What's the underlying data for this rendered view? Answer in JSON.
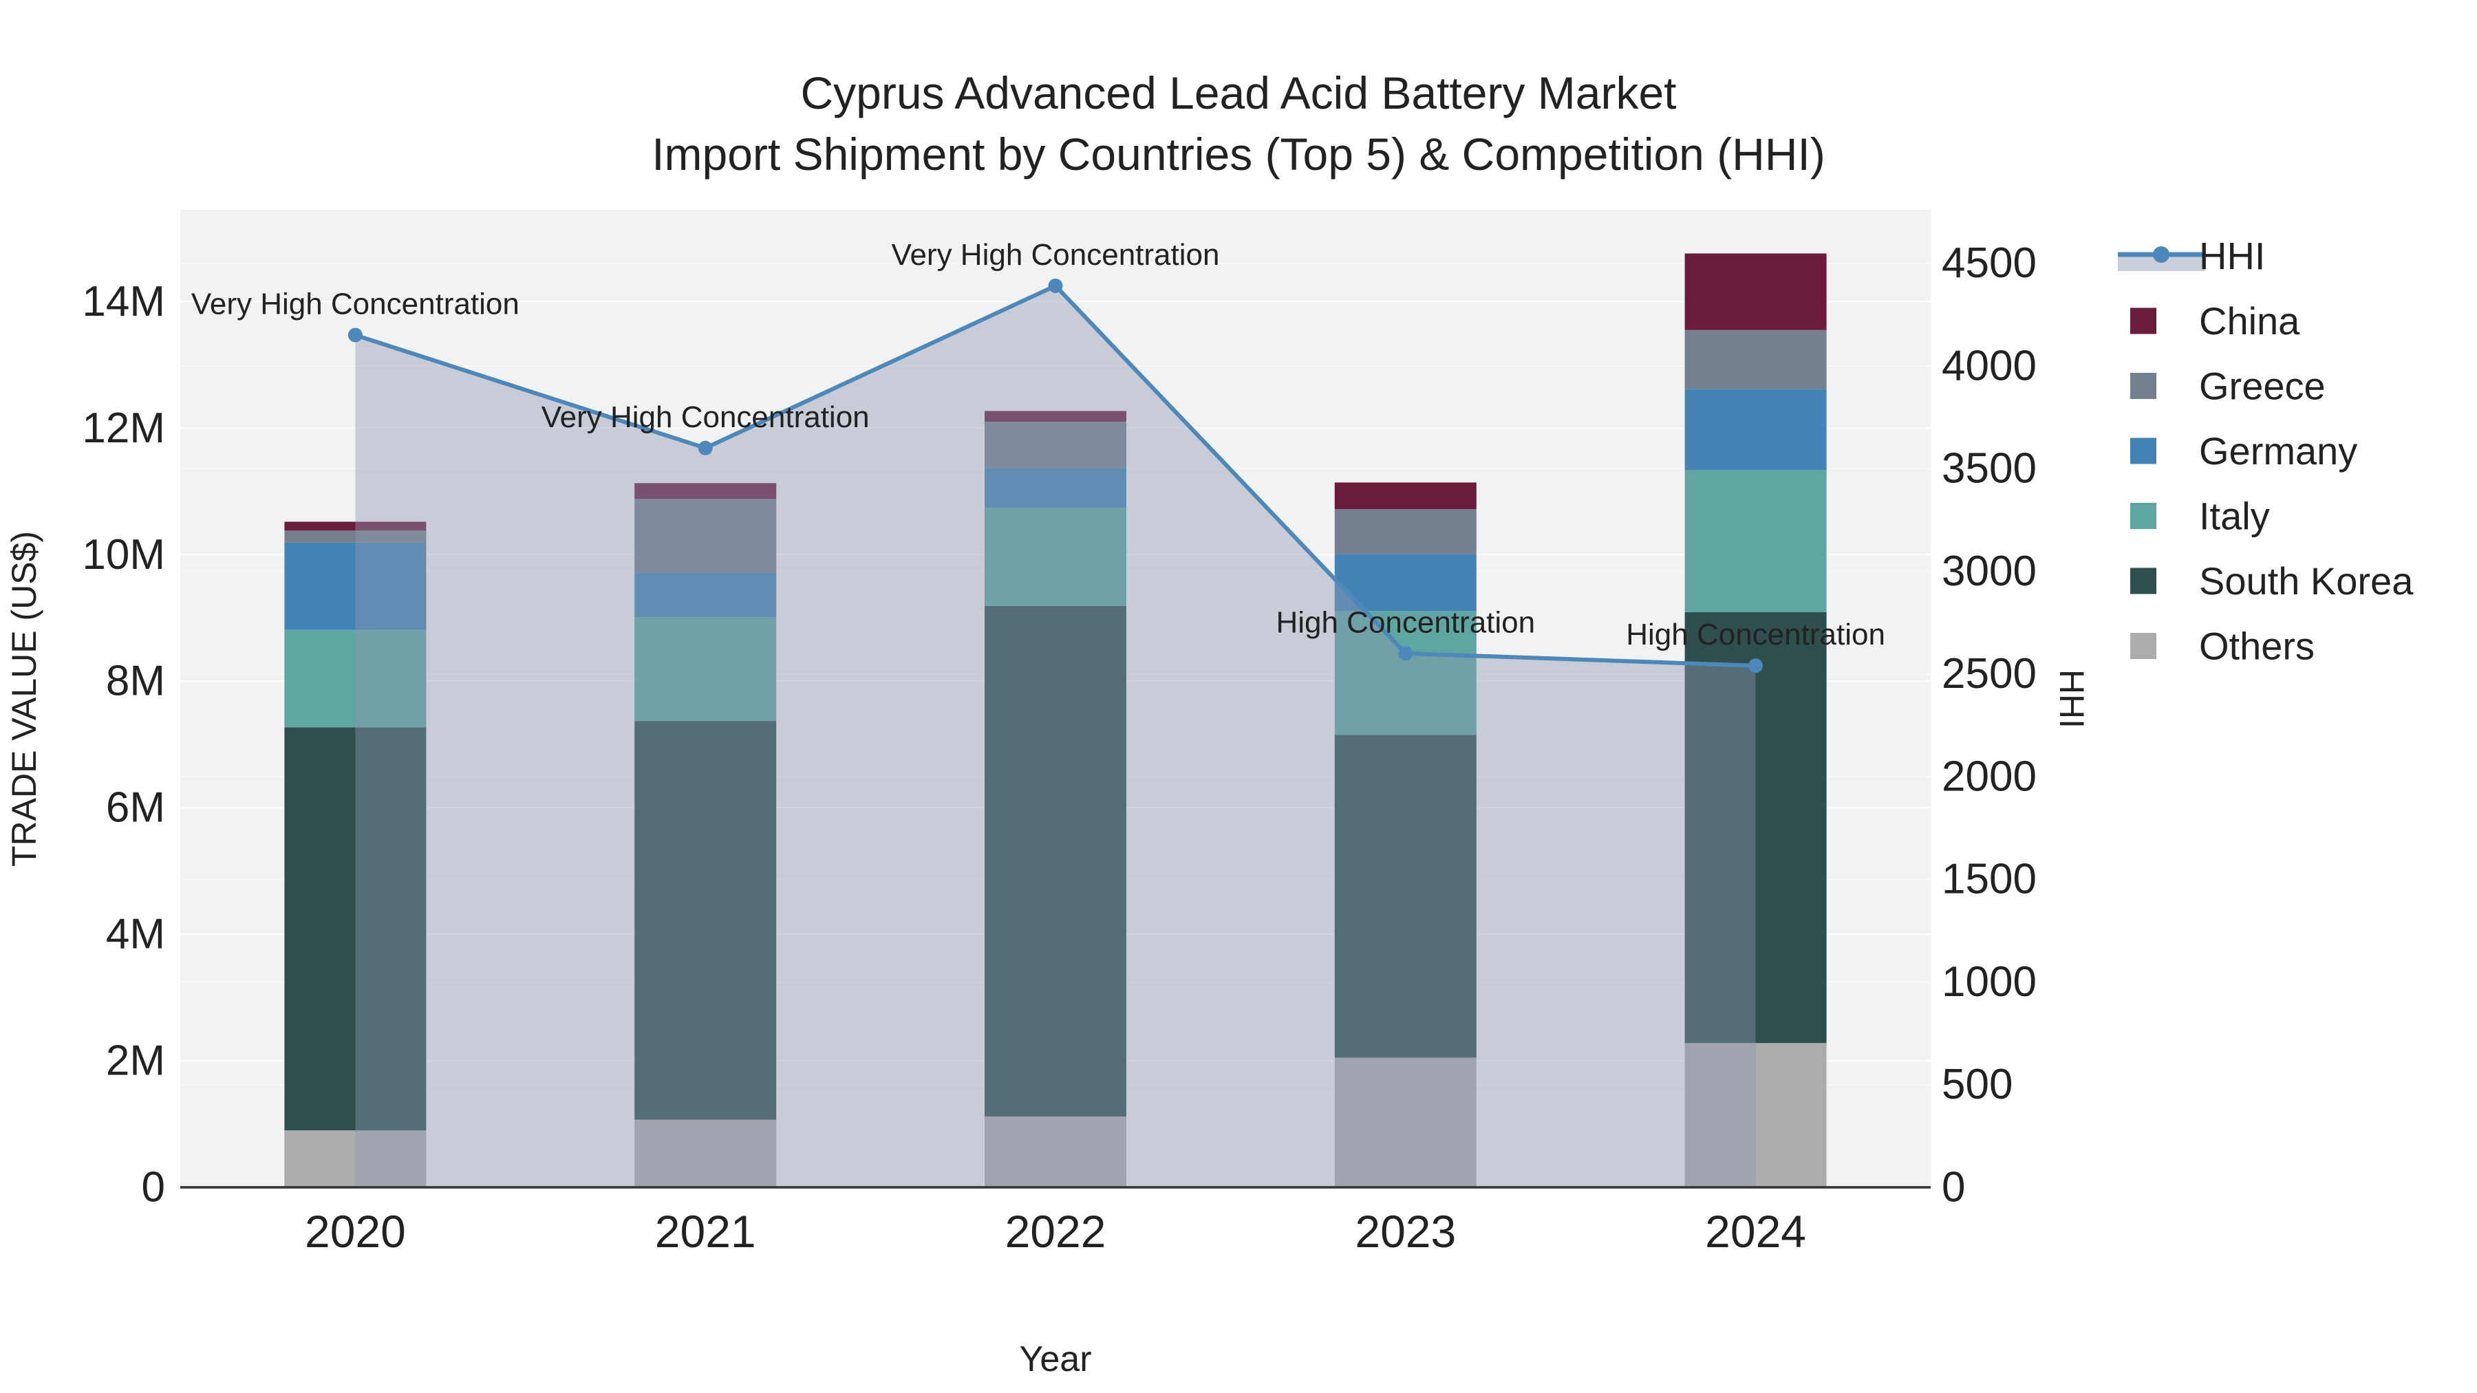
{
  "title": {
    "line1": "Cyprus Advanced Lead Acid Battery Market",
    "line2": "Import Shipment by Countries (Top 5) & Competition (HHI)"
  },
  "x_axis": {
    "title": "Year",
    "categories": [
      "2020",
      "2021",
      "2022",
      "2023",
      "2024"
    ]
  },
  "y_left_axis": {
    "title": "TRADE VALUE (US$)",
    "tick_labels": [
      "0",
      "2M",
      "4M",
      "6M",
      "8M",
      "10M",
      "12M",
      "14M"
    ],
    "tick_values": [
      0,
      2000000,
      4000000,
      6000000,
      8000000,
      10000000,
      12000000,
      14000000
    ]
  },
  "y_right_axis": {
    "title": "HHI",
    "tick_labels": [
      "0",
      "500",
      "1000",
      "1500",
      "2000",
      "2500",
      "3000",
      "3500",
      "4000",
      "4500"
    ],
    "tick_values": [
      0,
      500,
      1000,
      1500,
      2000,
      2500,
      3000,
      3500,
      4000,
      4500
    ]
  },
  "legend": {
    "items": [
      {
        "label": "HHI",
        "type": "line",
        "color": "#4E87BA",
        "fill_color": "#C9CFD9"
      },
      {
        "label": "China",
        "type": "swatch",
        "color": "#6B1C3D"
      },
      {
        "label": "Greece",
        "type": "swatch",
        "color": "#75808F"
      },
      {
        "label": "Germany",
        "type": "swatch",
        "color": "#4583B5"
      },
      {
        "label": "Italy",
        "type": "swatch",
        "color": "#5FA5A2"
      },
      {
        "label": "South Korea",
        "type": "swatch",
        "color": "#2E4F4E"
      },
      {
        "label": "Others",
        "type": "swatch",
        "color": "#ACACAC"
      }
    ]
  },
  "style": {
    "plot_bg": "#F1F2F2",
    "grid_left": "rgba(255,255,255,0.9)",
    "grid_right": "rgba(255,255,255,0.55)",
    "axis_line": "#333333"
  },
  "chart_data": [
    {
      "type": "bar",
      "stacked": true,
      "categories": [
        "2020",
        "2021",
        "2022",
        "2023",
        "2024"
      ],
      "series": [
        {
          "name": "Others",
          "color": "#ACACAC",
          "values": [
            900000,
            1070000,
            1120000,
            2050000,
            2280000
          ]
        },
        {
          "name": "South Korea",
          "color": "#2E4F4E",
          "values": [
            6370000,
            6300000,
            8070000,
            5100000,
            6810000
          ]
        },
        {
          "name": "Italy",
          "color": "#5FA5A2",
          "values": [
            1540000,
            1640000,
            1550000,
            1960000,
            2250000
          ]
        },
        {
          "name": "Germany",
          "color": "#4583B5",
          "values": [
            1380000,
            700000,
            630000,
            900000,
            1280000
          ]
        },
        {
          "name": "Greece",
          "color": "#75808F",
          "values": [
            190000,
            1170000,
            730000,
            710000,
            930000
          ]
        },
        {
          "name": "China",
          "color": "#6B1C3D",
          "values": [
            140000,
            250000,
            170000,
            420000,
            1210000
          ]
        }
      ],
      "xlabel": "Year",
      "ylabel": "TRADE VALUE (US$)",
      "ylim": [
        0,
        15450000
      ]
    },
    {
      "type": "line",
      "name": "HHI",
      "x": [
        "2020",
        "2021",
        "2022",
        "2023",
        "2024"
      ],
      "values": [
        4150,
        3600,
        4390,
        2600,
        2540
      ],
      "yaxis": "right",
      "ylabel": "HHI",
      "ylim": [
        0,
        4760
      ],
      "fill": "tozeroy",
      "color": "#4E87BA",
      "fill_color": "rgba(140,152,177,0.42)",
      "annotations": [
        "Very High Concentration",
        "Very High Concentration",
        "Very High Concentration",
        "High Concentration",
        "High Concentration"
      ]
    }
  ]
}
